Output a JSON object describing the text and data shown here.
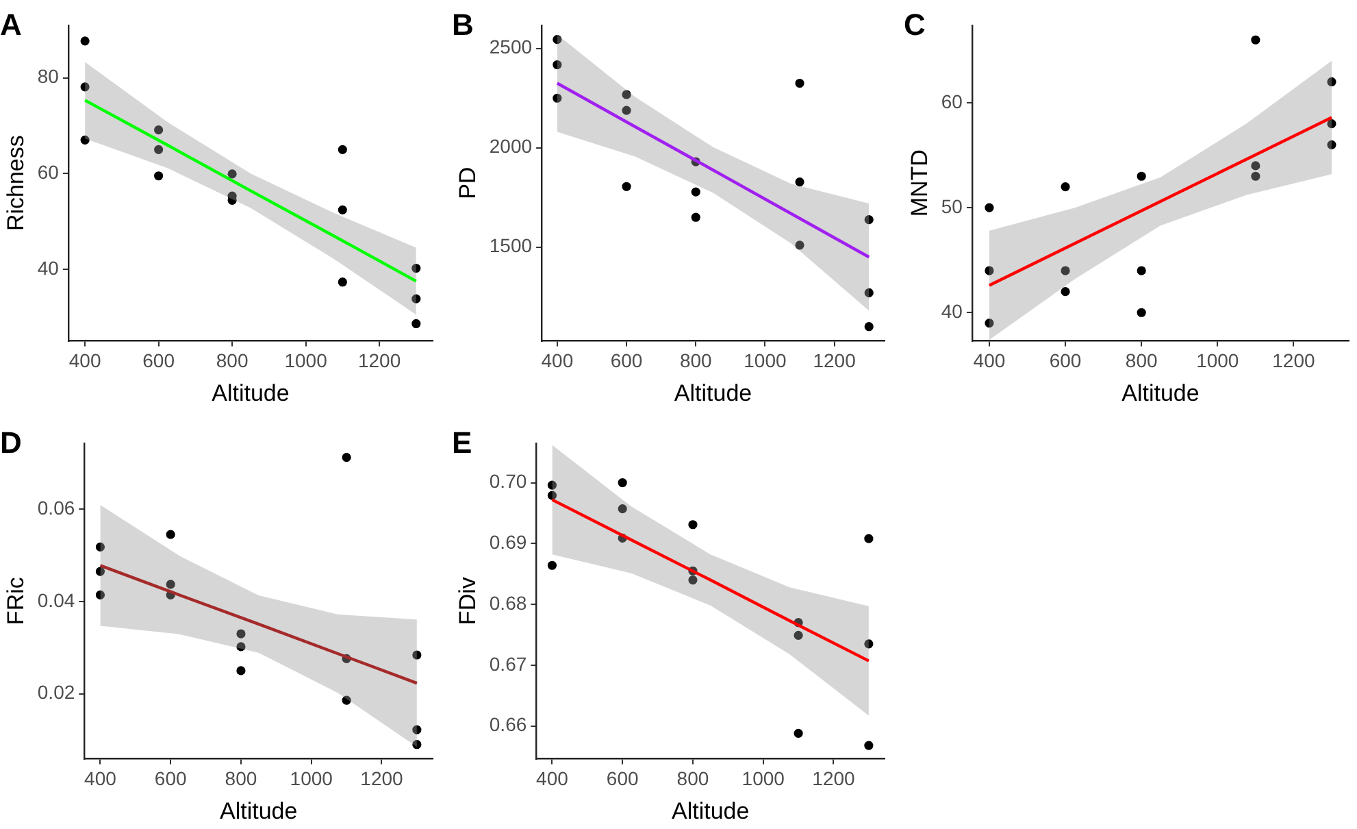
{
  "chart_data": [
    {
      "type": "scatter",
      "title": "A",
      "xlabel": "Altitude",
      "ylabel": "Richness",
      "xlim": [
        355,
        1345
      ],
      "xticks": [
        400,
        600,
        800,
        1000,
        1200
      ],
      "ylim": [
        25,
        91
      ],
      "yticks": [
        40,
        60,
        80
      ],
      "series": [
        {
          "type": "scatter",
          "color": "#000000",
          "marker": "circle",
          "x": [
            400,
            400,
            400,
            600,
            600,
            600,
            800,
            800,
            800,
            1100,
            1100,
            1100,
            1300,
            1300,
            1300
          ],
          "values": [
            87.7,
            78.1,
            67,
            69.1,
            65,
            59.5,
            59.9,
            55.3,
            54.4,
            65,
            52.4,
            37.3,
            40.2,
            33.8,
            28.6
          ]
        },
        {
          "type": "line",
          "color": "#00ff00",
          "x": [
            400,
            625,
            850,
            1075,
            1300
          ],
          "values": [
            75.3,
            65.9,
            56.4,
            47,
            37.5
          ],
          "lower": [
            67.3,
            61.1,
            52.8,
            42.2,
            30.5
          ],
          "upper": [
            83.3,
            70.7,
            60,
            51.8,
            44.5
          ]
        }
      ]
    },
    {
      "type": "scatter",
      "title": "B",
      "xlabel": "Altitude",
      "ylabel": "PD",
      "xlim": [
        355,
        1345
      ],
      "xticks": [
        400,
        600,
        800,
        1000,
        1200
      ],
      "ylim": [
        1028,
        2617
      ],
      "yticks": [
        1500,
        2000,
        2500
      ],
      "series": [
        {
          "type": "scatter",
          "color": "#000000",
          "marker": "circle",
          "x": [
            400,
            400,
            400,
            600,
            600,
            600,
            800,
            800,
            800,
            1100,
            1100,
            1100,
            1300,
            1300,
            1300
          ],
          "values": [
            2545,
            2418,
            2250,
            2268,
            2188,
            1805,
            1930,
            1778,
            1650,
            2325,
            1828,
            1510,
            1638,
            1270,
            1100
          ]
        },
        {
          "type": "line",
          "color": "#a020f0",
          "x": [
            400,
            625,
            850,
            1075,
            1300
          ],
          "values": [
            2325,
            2106,
            1888,
            1669,
            1450
          ],
          "lower": [
            2080,
            1956,
            1773,
            1519,
            1180
          ],
          "upper": [
            2570,
            2256,
            2003,
            1819,
            1720
          ]
        }
      ]
    },
    {
      "type": "scatter",
      "title": "C",
      "xlabel": "Altitude",
      "ylabel": "MNTD",
      "xlim": [
        355,
        1345
      ],
      "xticks": [
        400,
        600,
        800,
        1000,
        1200
      ],
      "ylim": [
        37.3,
        67.4
      ],
      "yticks": [
        40,
        50,
        60
      ],
      "series": [
        {
          "type": "scatter",
          "color": "#000000",
          "marker": "circle",
          "x": [
            400,
            400,
            400,
            600,
            600,
            600,
            800,
            800,
            800,
            1100,
            1100,
            1100,
            1300,
            1300,
            1300
          ],
          "values": [
            50,
            44,
            39,
            52,
            44,
            42,
            53,
            44,
            40,
            66,
            54,
            53,
            62,
            58,
            56
          ]
        },
        {
          "type": "line",
          "color": "#ff0000",
          "x": [
            400,
            625,
            850,
            1075,
            1300
          ],
          "values": [
            42.6,
            46.6,
            50.6,
            54.6,
            58.6
          ],
          "lower": [
            37.4,
            43.2,
            48.3,
            51.2,
            53.2
          ],
          "upper": [
            47.8,
            50,
            52.9,
            58,
            64
          ]
        }
      ]
    },
    {
      "type": "scatter",
      "title": "D",
      "xlabel": "Altitude",
      "ylabel": "FRic",
      "xlim": [
        355,
        1345
      ],
      "xticks": [
        400,
        600,
        800,
        1000,
        1200
      ],
      "ylim": [
        0.0059,
        0.0743
      ],
      "yticks": [
        {
          "value": 0.02,
          "label": "0.02"
        },
        {
          "value": 0.04,
          "label": "0.04"
        },
        {
          "value": 0.06,
          "label": "0.06"
        }
      ],
      "series": [
        {
          "type": "scatter",
          "color": "#000000",
          "marker": "circle",
          "x": [
            400,
            400,
            400,
            600,
            600,
            600,
            800,
            800,
            800,
            1100,
            1100,
            1100,
            1300,
            1300,
            1300
          ],
          "values": [
            0.0518,
            0.0465,
            0.0414,
            0.0545,
            0.0437,
            0.0414,
            0.033,
            0.0302,
            0.025,
            0.0712,
            0.0276,
            0.0186,
            0.0284,
            0.0122,
            0.009
          ]
        },
        {
          "type": "line",
          "color": "#a52a2a",
          "x": [
            400,
            625,
            850,
            1075,
            1300
          ],
          "values": [
            0.0478,
            0.0414,
            0.0351,
            0.0287,
            0.0223
          ],
          "lower": [
            0.0347,
            0.0329,
            0.0289,
            0.0202,
            0.0085
          ],
          "upper": [
            0.0609,
            0.0499,
            0.0413,
            0.0372,
            0.0361
          ]
        }
      ]
    },
    {
      "type": "scatter",
      "title": "E",
      "xlabel": "Altitude",
      "ylabel": "FDiv",
      "xlim": [
        355,
        1345
      ],
      "xticks": [
        400,
        600,
        800,
        1000,
        1200
      ],
      "ylim": [
        0.6546,
        0.7065
      ],
      "yticks": [
        {
          "value": 0.66,
          "label": "0.66"
        },
        {
          "value": 0.67,
          "label": "0.67"
        },
        {
          "value": 0.68,
          "label": "0.68"
        },
        {
          "value": 0.69,
          "label": "0.69"
        },
        {
          "value": 0.7,
          "label": "0.70"
        }
      ],
      "series": [
        {
          "type": "scatter",
          "color": "#000000",
          "marker": "circle",
          "x": [
            400,
            400,
            400,
            600,
            600,
            600,
            800,
            800,
            800,
            1100,
            1100,
            1100,
            1300,
            1300,
            1300
          ],
          "values": [
            0.6996,
            0.6979,
            0.6864,
            0.7,
            0.6957,
            0.6909,
            0.6931,
            0.6855,
            0.684,
            0.677,
            0.6749,
            0.6588,
            0.6908,
            0.6735,
            0.6568
          ]
        },
        {
          "type": "line",
          "color": "#ff0000",
          "x": [
            400,
            625,
            850,
            1075,
            1300
          ],
          "values": [
            0.6972,
            0.6906,
            0.684,
            0.6773,
            0.6707
          ],
          "lower": [
            0.6882,
            0.6851,
            0.6798,
            0.6718,
            0.6617
          ],
          "upper": [
            0.7062,
            0.6961,
            0.6882,
            0.6828,
            0.6797
          ]
        }
      ]
    }
  ]
}
